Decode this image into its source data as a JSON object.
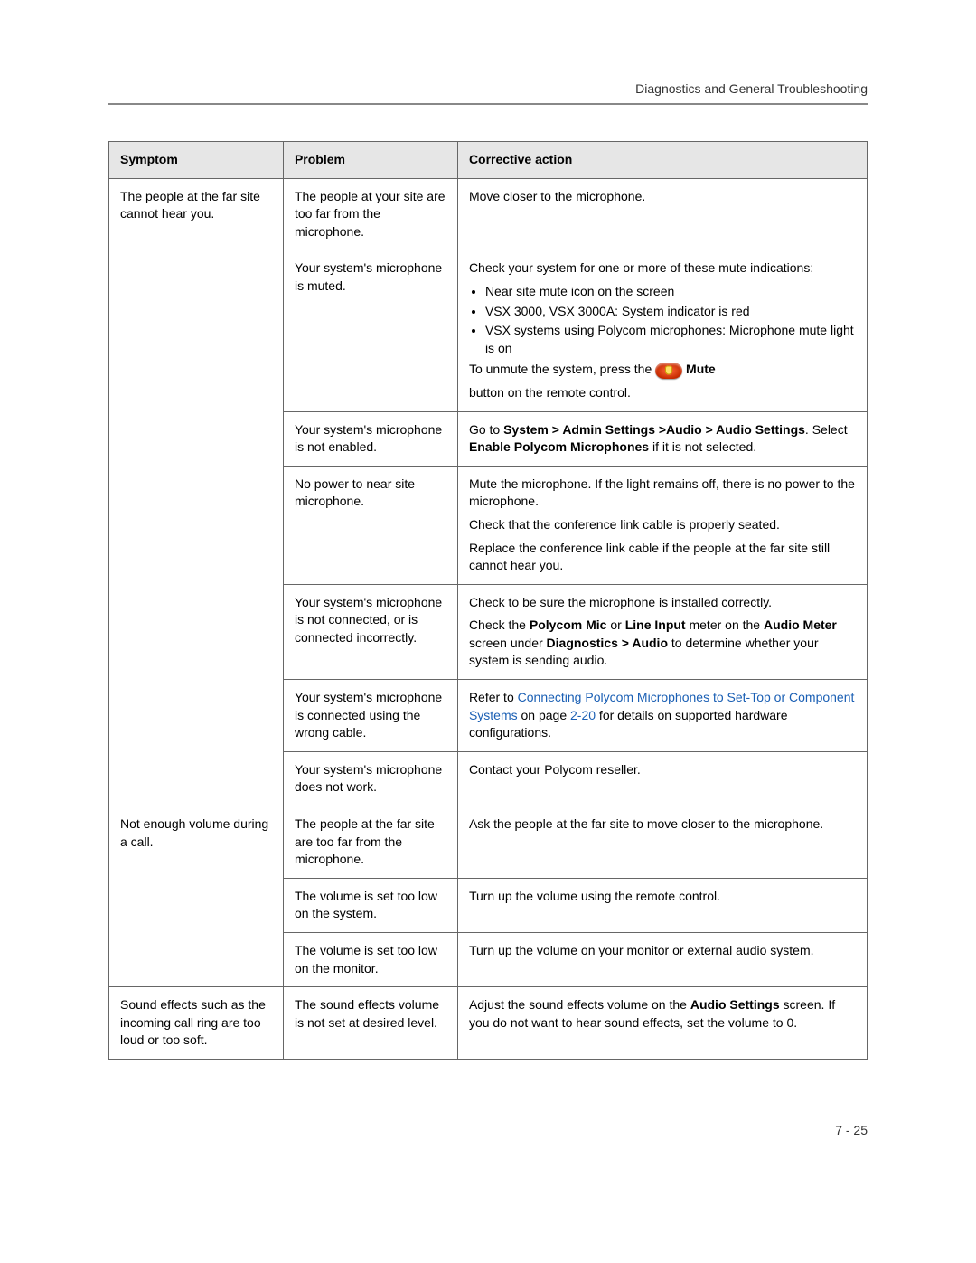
{
  "header": {
    "section_title": "Diagnostics and General Troubleshooting"
  },
  "footer": {
    "page_number": "7 - 25"
  },
  "table": {
    "headers": {
      "symptom": "Symptom",
      "problem": "Problem",
      "action": "Corrective action"
    },
    "symptom1": "The people at the far site cannot hear you.",
    "s1_r1_problem": "The people at your site are too far from the microphone.",
    "s1_r1_action": "Move closer to the microphone.",
    "s1_r2_problem": "Your system's microphone is muted.",
    "s1_r2_a1": "Check your system for one or more of these mute indications:",
    "s1_r2_b1": "Near site mute icon on the screen",
    "s1_r2_b2": "VSX 3000, VSX 3000A: System indicator is red",
    "s1_r2_b3": "VSX systems using Polycom microphones: Microphone mute light is on",
    "s1_r2_a2a": "To unmute the system, press the ",
    "s1_r2_a2b": " Mute",
    "s1_r2_a3": "button on the remote control.",
    "s1_r3_problem": "Your system's microphone is not enabled.",
    "s1_r3_a1a": "Go to ",
    "s1_r3_a1b": "System > Admin Settings >Audio > Audio Settings",
    "s1_r3_a1c": ". Select ",
    "s1_r3_a1d": "Enable Polycom Microphones",
    "s1_r3_a1e": " if it is not selected.",
    "s1_r4_problem": "No power to near site microphone.",
    "s1_r4_a1": "Mute the microphone. If the light remains off, there is no power to the microphone.",
    "s1_r4_a2": "Check that the conference link cable is properly seated.",
    "s1_r4_a3": "Replace the conference link cable if the people at the far site still cannot hear you.",
    "s1_r5_problem": "Your system's microphone is not connected, or is connected incorrectly.",
    "s1_r5_a1": "Check to be sure the microphone is installed correctly.",
    "s1_r5_a2a": "Check the ",
    "s1_r5_a2b": "Polycom Mic",
    "s1_r5_a2c": " or ",
    "s1_r5_a2d": "Line Input",
    "s1_r5_a2e": " meter on the ",
    "s1_r5_a2f": "Audio Meter",
    "s1_r5_a2g": " screen under ",
    "s1_r5_a2h": "Diagnostics > Audio",
    "s1_r5_a2i": " to determine whether your system is sending audio.",
    "s1_r6_problem": "Your system's microphone is connected using the wrong cable.",
    "s1_r6_a1a": "Refer to ",
    "s1_r6_a1b": "Connecting Polycom Microphones to Set-Top or Component Systems",
    "s1_r6_a1c": " on page ",
    "s1_r6_a1d": "2-20",
    "s1_r6_a1e": " for details on supported hardware configurations.",
    "s1_r7_problem": "Your system's microphone does not work.",
    "s1_r7_action": "Contact your Polycom reseller.",
    "symptom2": "Not enough volume during a call.",
    "s2_r1_problem": "The people at the far site are too far from the microphone.",
    "s2_r1_action": "Ask the people at the far site to move closer to the microphone.",
    "s2_r2_problem": "The volume is set too low on the system.",
    "s2_r2_action": "Turn up the volume using the remote control.",
    "s2_r3_problem": "The volume is set too low on the monitor.",
    "s2_r3_action": "Turn up the volume on your monitor or external audio system.",
    "symptom3": "Sound effects such as the incoming call ring are too loud or too soft.",
    "s3_r1_problem": "The sound effects volume is not set at desired level.",
    "s3_r1_a1a": "Adjust the sound effects volume on the ",
    "s3_r1_a1b": "Audio Settings",
    "s3_r1_a1c": " screen. If you do not want to hear sound effects, set the volume to 0."
  }
}
